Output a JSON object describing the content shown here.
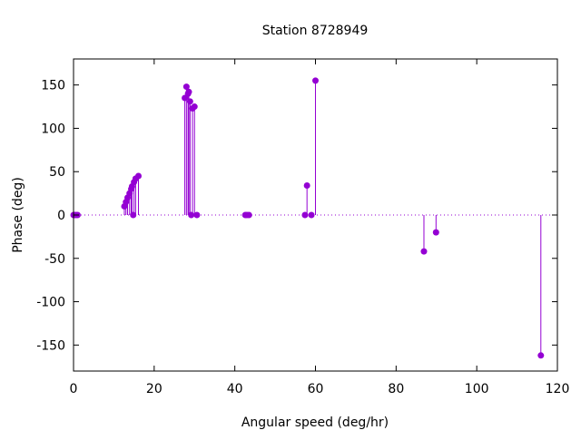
{
  "chart_data": {
    "type": "scatter",
    "style": "impulses-with-points",
    "title": "Station 8728949",
    "xlabel": "Angular speed (deg/hr)",
    "ylabel": "Phase (deg)",
    "xlim": [
      0,
      120
    ],
    "ylim": [
      -180,
      180
    ],
    "xticks": [
      0,
      20,
      40,
      60,
      80,
      100,
      120
    ],
    "yticks": [
      -150,
      -100,
      -50,
      0,
      50,
      100,
      150
    ],
    "grid": false,
    "zero_line": "dotted",
    "color": "#9400d3",
    "series": [
      {
        "x": [
          0.0,
          0.3,
          0.6,
          1.0,
          12.6,
          13.0,
          13.4,
          13.9,
          14.3,
          14.5,
          14.8,
          15.0,
          15.4,
          16.1,
          27.6,
          28.0,
          28.4,
          28.6,
          28.9,
          29.2,
          29.5,
          30.0,
          30.6,
          42.6,
          43.0,
          43.5,
          57.4,
          57.9,
          59.0,
          60.0,
          86.9,
          89.9,
          115.9
        ],
        "y": [
          0,
          0,
          0,
          0,
          10,
          15,
          20,
          25,
          30,
          33,
          0,
          38,
          42,
          45,
          135,
          148,
          140,
          142,
          131,
          0,
          123,
          125,
          0,
          0,
          0,
          0,
          0,
          34,
          0,
          155,
          -42,
          -20,
          -162
        ]
      }
    ]
  }
}
